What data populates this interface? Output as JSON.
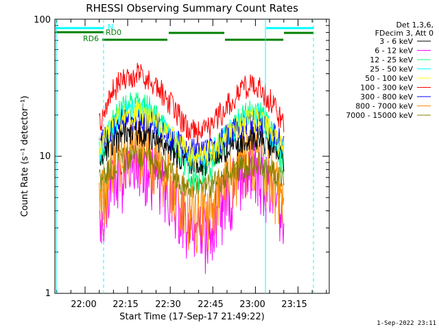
{
  "chart_data": {
    "type": "line",
    "title": "RHESSI Observing Summary Count Rates",
    "xlabel": "Start Time (17-Sep-17 21:49:22)",
    "ylabel": "Count Rate (s⁻¹ detector⁻¹)",
    "yscale": "log",
    "ylim": [
      1,
      100
    ],
    "xlim": [
      "21:49:22",
      "23:26:00"
    ],
    "y_ticks": [
      "1",
      "10",
      "100"
    ],
    "x_ticks": [
      "22:00",
      "22:15",
      "22:30",
      "22:45",
      "23:00",
      "23:15"
    ],
    "legend_header": [
      "Det 1,3,6,",
      "FDecim 3, Att 0"
    ],
    "legend_position": "top-right, outside plot",
    "series": [
      {
        "name": "3 - 6 keV",
        "color": "#000000",
        "peaks": [
          15,
          14
        ],
        "trough": 9
      },
      {
        "name": "6 - 12 keV",
        "color": "#ff00ff",
        "peaks": [
          9,
          8.5
        ],
        "trough": 2.8
      },
      {
        "name": "12 - 25 keV",
        "color": "#00ff7f",
        "peaks": [
          25,
          22
        ],
        "trough": 7
      },
      {
        "name": "25 - 50 keV",
        "color": "#00ffff",
        "peaks": [
          22,
          20
        ],
        "trough": 9.5
      },
      {
        "name": "50 - 100 keV",
        "color": "#ffff00",
        "peaks": [
          21,
          19
        ],
        "trough": 10
      },
      {
        "name": "100 - 300 keV",
        "color": "#ff0000",
        "peaks": [
          40,
          34
        ],
        "trough": 15
      },
      {
        "name": "300 - 800 keV",
        "color": "#0000ff",
        "peaks": [
          19,
          18
        ],
        "trough": 11
      },
      {
        "name": "800 - 7000 keV",
        "color": "#ff8c00",
        "peaks": [
          12,
          11
        ],
        "trough": 4
      },
      {
        "name": "7000 - 15000 keV",
        "color": "#808000",
        "peaks": [
          10,
          9
        ],
        "trough": 6
      }
    ],
    "annotations": {
      "night_label": "N",
      "rd0_label": "RD0",
      "rd6_label": "RD6",
      "timestamp": "1-Sep-2022 23:11"
    },
    "grid": false
  }
}
